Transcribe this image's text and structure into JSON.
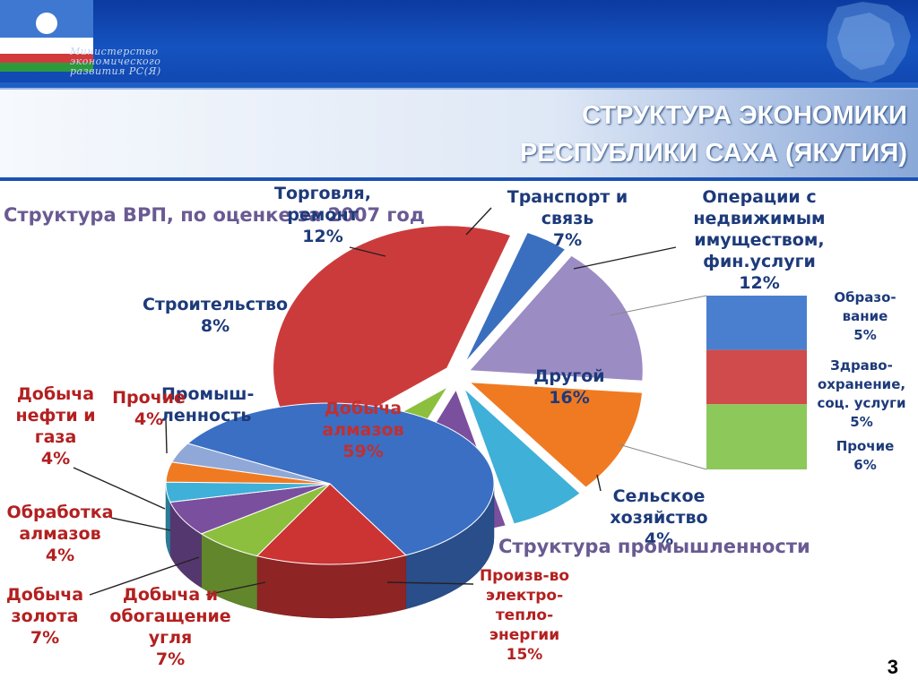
{
  "header": {
    "logo_lines": [
      "Министерство",
      "экономического",
      "развития РС(Я)"
    ],
    "title_line1": "СТРУКТУРА ЭКОНОМИКИ",
    "title_line2": "РЕСПУБЛИКИ САХА (ЯКУТИЯ)",
    "flag_colors": [
      "#3e78d0",
      "#ffffff",
      "#d23b3b",
      "#2c9a3c"
    ],
    "accent": "#1553bf"
  },
  "page_number": "3",
  "chart_data": [
    {
      "type": "pie",
      "title": "Структура ВРП, по оценке за 2007 год",
      "slices": [
        {
          "label": "Промышленность",
          "value": 40,
          "color": "#cc3b3b"
        },
        {
          "label": "Сельское хозяйство",
          "value": 4,
          "color": "#3a6fbf"
        },
        {
          "label": "Другой",
          "value": 16,
          "color": "#9c8cc4"
        },
        {
          "label": "Операции с недвижимым имуществом, фин.услуги",
          "value": 12,
          "color": "#f07a22"
        },
        {
          "label": "Транспорт и связь",
          "value": 7,
          "color": "#3fb0d8"
        },
        {
          "label": "Торговля, ремонт",
          "value": 12,
          "color": "#7a4f9e"
        },
        {
          "label": "Строительство",
          "value": 8,
          "color": "#8cbf3e"
        }
      ],
      "labels": {
        "trade": "Торговля,\nремонт\n12%",
        "transport": "Транспорт и\nсвязь\n7%",
        "realestate": "Операции с\nнедвижимым\nимуществом,\nфин.услуги\n12%",
        "construction": "Строительство\n8%",
        "other": "Другой\n16%",
        "agriculture": "Сельское\nхозяйство\n4%",
        "industry": "Промыш-\nленность"
      }
    },
    {
      "type": "pie",
      "title": "Структура промышленности",
      "slices": [
        {
          "label": "Добыча алмазов",
          "value": 59,
          "color": "#3a6fc4"
        },
        {
          "label": "Произв-во электро-теплоэнергии",
          "value": 15,
          "color": "#cc3333"
        },
        {
          "label": "Добыча и обогащение угля",
          "value": 7,
          "color": "#8cbf3e"
        },
        {
          "label": "Добыча золота",
          "value": 7,
          "color": "#7a4f9e"
        },
        {
          "label": "Обработка алмазов",
          "value": 4,
          "color": "#3fb0d8"
        },
        {
          "label": "Прочие",
          "value": 4,
          "color": "#f07a22"
        },
        {
          "label": "Добыча нефти и газа",
          "value": 4,
          "color": "#8fa8d8"
        }
      ],
      "labels": {
        "diamonds": "Добыча\nалмазов\n59%",
        "energy": "Произв-во\nэлектро-\nтепло-\nэнергии\n15%",
        "coal": "Добыча и\nобогащение\nугля\n7%",
        "gold": "Добыча\nзолота\n7%",
        "processing": "Обработка\nалмазов\n4%",
        "other": "Прочие\n4%",
        "oilgas": "Добыча\nнефти и\nгаза\n4%"
      }
    },
    {
      "type": "bar",
      "title": "",
      "stacked": true,
      "series": [
        {
          "label": "Образо-\nвание\n5%",
          "value": 5,
          "color": "#4a7fd0"
        },
        {
          "label": "Здраво-\nохранение,\nсоц. услуги\n5%",
          "value": 5,
          "color": "#d04b4b"
        },
        {
          "label": "Прочие\n6%",
          "value": 6,
          "color": "#8cc85a"
        }
      ]
    }
  ]
}
